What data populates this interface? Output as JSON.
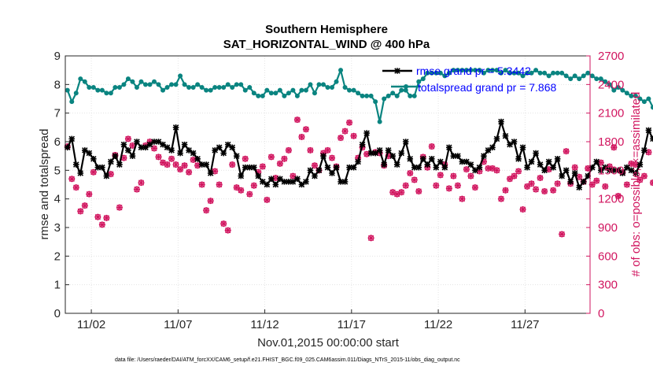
{
  "chart_data": {
    "type": "line",
    "title": "Southern Hemisphere",
    "subtitle": "SAT_HORIZONTAL_WIND @ 400 hPa",
    "xlabel": "Nov.01,2015 00:00:00 start",
    "ylabel_left": "rmse and totalspread",
    "ylabel_right": "# of obs: o=possible; ×=assimilated",
    "footer": "data file: /Users/raeder/DAI/ATM_forcXX/CAM6_setup/f.e21.FHIST_BGC.f09_025.CAM6assim.011/Diags_NTrS_2015-11/obs_diag_output.nc",
    "xlim": [
      0.5,
      30.75
    ],
    "ylim_left": [
      0,
      9
    ],
    "ylim_right": [
      0,
      2700
    ],
    "x_ticks": [
      {
        "value": 2,
        "label": "11/02"
      },
      {
        "value": 7,
        "label": "11/07"
      },
      {
        "value": 12,
        "label": "11/12"
      },
      {
        "value": 17,
        "label": "11/17"
      },
      {
        "value": 22,
        "label": "11/22"
      },
      {
        "value": 27,
        "label": "11/27"
      }
    ],
    "left_ticks": [
      "0",
      "1",
      "2",
      "3",
      "4",
      "5",
      "6",
      "7",
      "8",
      "9"
    ],
    "right_ticks": [
      "0",
      "300",
      "600",
      "900",
      "1200",
      "1500",
      "1800",
      "2100",
      "2400",
      "2700"
    ],
    "series": [
      {
        "name": "rmse",
        "legend_label": "rmse grand pr = 5.3442",
        "color": "#000000",
        "axis": "left",
        "x_start": 0.625,
        "x_step": 0.25,
        "values": [
          5.8,
          6.1,
          5.2,
          4.9,
          5.7,
          5.6,
          5.4,
          5.1,
          5.1,
          4.8,
          5.3,
          5.5,
          5.2,
          5.9,
          5.7,
          5.5,
          6.0,
          5.8,
          5.8,
          5.9,
          6.0,
          6.0,
          5.9,
          5.8,
          5.7,
          6.5,
          5.6,
          5.9,
          5.7,
          5.6,
          5.4,
          5.2,
          5.2,
          4.9,
          5.7,
          5.8,
          5.6,
          5.9,
          5.8,
          5.5,
          4.8,
          5.1,
          5.1,
          5.1,
          4.8,
          4.6,
          4.5,
          4.7,
          4.5,
          4.7,
          4.6,
          4.6,
          4.6,
          4.7,
          4.5,
          4.6,
          5.0,
          4.8,
          5.0,
          5.5,
          5.1,
          4.9,
          5.1,
          4.6,
          4.6,
          5.1,
          5.1,
          5.3,
          5.9,
          6.3,
          5.6,
          5.6,
          5.7,
          5.2,
          5.7,
          5.5,
          5.2,
          5.6,
          6.0,
          5.4,
          5.1,
          5.1,
          5.4,
          5.2,
          5.4,
          5.1,
          5.3,
          5.1,
          5.8,
          5.5,
          5.5,
          5.3,
          5.3,
          5.2,
          5.0,
          5.1,
          5.5,
          5.7,
          5.8,
          6.1,
          6.7,
          6.2,
          5.9,
          6.0,
          5.4,
          5.8,
          5.1,
          5.3,
          5.6,
          5.2,
          5.0,
          5.3,
          5.1,
          5.4,
          4.8,
          5.0,
          4.6,
          4.9,
          4.4,
          4.6,
          4.8,
          5.1,
          5.3,
          5.0,
          5.1,
          5.0,
          5.0,
          5.0,
          4.9,
          5.1,
          5.0,
          4.9,
          5.2,
          5.7,
          6.4,
          6.1,
          5.8,
          5.6,
          5.3,
          5.2
        ]
      },
      {
        "name": "totalspread",
        "legend_label": "totalspread grand pr = 7.868",
        "color": "#0a8480",
        "axis": "left",
        "x_start": 0.625,
        "x_step": 0.25,
        "values": [
          7.8,
          7.4,
          7.7,
          8.2,
          8.1,
          7.9,
          7.9,
          7.8,
          7.8,
          7.7,
          7.7,
          7.9,
          7.9,
          8.0,
          8.2,
          8.1,
          7.9,
          8.1,
          8.0,
          8.0,
          8.1,
          8.0,
          7.8,
          7.9,
          8.0,
          8.0,
          8.3,
          8.0,
          7.9,
          7.9,
          8.0,
          7.9,
          7.8,
          7.8,
          7.9,
          7.9,
          7.9,
          8.0,
          7.9,
          8.0,
          8.0,
          7.8,
          7.9,
          7.7,
          7.6,
          7.6,
          7.8,
          7.7,
          7.7,
          7.8,
          7.6,
          7.7,
          7.8,
          7.6,
          7.8,
          7.8,
          8.0,
          7.7,
          8.0,
          8.0,
          7.9,
          7.9,
          8.1,
          8.5,
          7.9,
          7.8,
          7.8,
          7.7,
          7.6,
          7.6,
          7.6,
          7.4,
          6.7,
          7.5,
          7.6,
          7.7,
          7.6,
          7.8,
          7.8,
          7.6,
          7.6,
          8.1,
          8.2,
          8.4,
          8.4,
          8.4,
          8.4,
          8.3,
          8.4,
          8.5,
          8.5,
          8.5,
          8.5,
          8.5,
          8.5,
          8.5,
          8.4,
          8.5,
          8.5,
          8.5,
          8.4,
          8.5,
          8.4,
          8.4,
          8.4,
          8.3,
          8.4,
          8.4,
          8.5,
          8.4,
          8.4,
          8.3,
          8.4,
          8.4,
          8.4,
          8.3,
          8.2,
          8.3,
          8.2,
          8.3,
          8.4,
          8.3,
          8.2,
          8.2,
          8.1,
          8.0,
          7.8,
          7.9,
          7.8,
          7.7,
          7.6,
          7.6,
          7.5,
          7.4,
          7.5,
          7.2,
          7.4,
          7.5,
          7.5,
          7.5
        ]
      }
    ],
    "obs_counts": {
      "axis": "right",
      "color": "#d1155f",
      "x_start": 0.625,
      "x_step": 0.25,
      "possible": [
        1750,
        1410,
        1320,
        1070,
        1130,
        1250,
        1480,
        1010,
        930,
        1000,
        1460,
        1660,
        1110,
        1630,
        1830,
        1760,
        1300,
        1370,
        1760,
        1800,
        1730,
        1640,
        1580,
        1560,
        1620,
        1560,
        1510,
        1550,
        1480,
        1610,
        1550,
        1350,
        1080,
        1180,
        1490,
        1350,
        940,
        870,
        1560,
        1320,
        1290,
        1620,
        1250,
        1340,
        1480,
        1540,
        1190,
        1640,
        1420,
        1570,
        1620,
        1710,
        1440,
        2030,
        1850,
        1930,
        1710,
        1550,
        1500,
        1680,
        1710,
        1630,
        1540,
        1840,
        1910,
        2000,
        1860,
        1630,
        1740,
        1670,
        790,
        1690,
        1680,
        1550,
        1650,
        1270,
        1250,
        1270,
        1340,
        1470,
        1400,
        1280,
        1640,
        1530,
        1750,
        1340,
        1450,
        1560,
        1310,
        1440,
        1340,
        1200,
        1510,
        1440,
        1320,
        1490,
        1590,
        1520,
        1520,
        1500,
        1200,
        1290,
        1410,
        1440,
        1490,
        1090,
        1330,
        1360,
        1300,
        1420,
        1280,
        1510,
        1290,
        1360,
        830,
        1700,
        1360,
        1530,
        1430,
        1380,
        1520,
        1350,
        1390,
        1580,
        1330,
        1540,
        1740,
        1230,
        1480,
        1350,
        1570,
        1560,
        1400,
        1440,
        1690,
        1370,
        1340,
        1220,
        1330,
        1450
      ]
    }
  }
}
